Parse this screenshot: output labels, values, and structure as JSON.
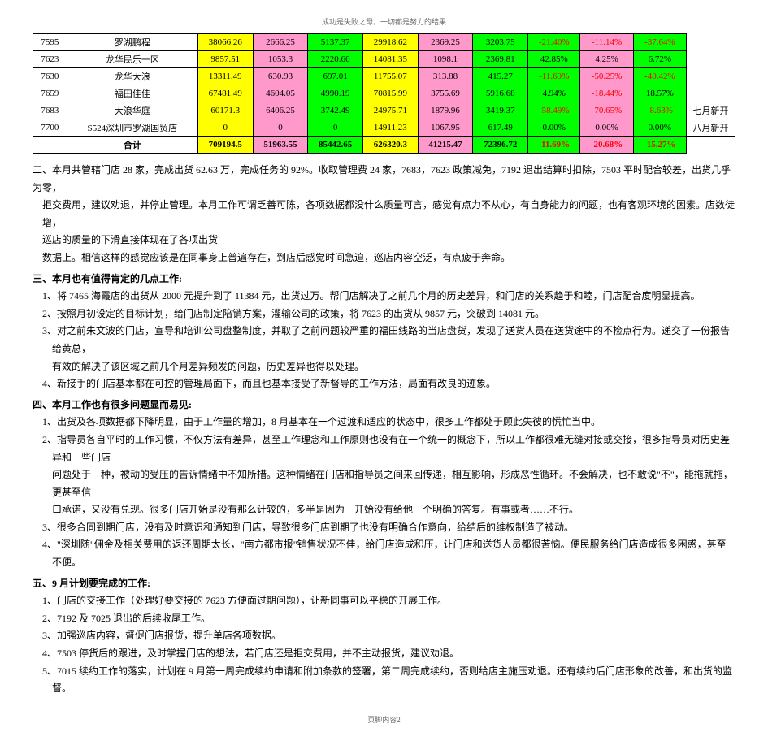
{
  "header_text": "成功是失败之母，一切都是努力的结果",
  "footer_text": "页脚内容2",
  "colors": {
    "yellow": "#ffff00",
    "pink": "#ff99cc",
    "green": "#00ff00",
    "red_text": "#ff0000",
    "white": "#ffffff"
  },
  "table": {
    "rows": [
      {
        "code": "7595",
        "name": "罗湖鹏程",
        "c1": {
          "v": "38066.26",
          "bg": "#ffff00"
        },
        "c2": {
          "v": "2666.25",
          "bg": "#ff99cc"
        },
        "c3": {
          "v": "5137.37",
          "bg": "#00ff00"
        },
        "c4": {
          "v": "29918.62",
          "bg": "#ffff00"
        },
        "c5": {
          "v": "2369.25",
          "bg": "#ff99cc"
        },
        "c6": {
          "v": "3203.75",
          "bg": "#00ff00"
        },
        "c7": {
          "v": "-21.40%",
          "bg": "#00ff00",
          "red": true
        },
        "c8": {
          "v": "-11.14%",
          "bg": "#ff99cc",
          "red": true
        },
        "c9": {
          "v": "-37.64%",
          "bg": "#00ff00",
          "red": true
        },
        "extra": ""
      },
      {
        "code": "7623",
        "name": "龙华民乐一区",
        "c1": {
          "v": "9857.51",
          "bg": "#ffff00"
        },
        "c2": {
          "v": "1053.3",
          "bg": "#ff99cc"
        },
        "c3": {
          "v": "2220.66",
          "bg": "#00ff00"
        },
        "c4": {
          "v": "14081.35",
          "bg": "#ffff00"
        },
        "c5": {
          "v": "1098.1",
          "bg": "#ff99cc"
        },
        "c6": {
          "v": "2369.81",
          "bg": "#00ff00"
        },
        "c7": {
          "v": "42.85%",
          "bg": "#00ff00"
        },
        "c8": {
          "v": "4.25%",
          "bg": "#ff99cc"
        },
        "c9": {
          "v": "6.72%",
          "bg": "#00ff00"
        },
        "extra": ""
      },
      {
        "code": "7630",
        "name": "龙华大浪",
        "c1": {
          "v": "13311.49",
          "bg": "#ffff00"
        },
        "c2": {
          "v": "630.93",
          "bg": "#ff99cc"
        },
        "c3": {
          "v": "697.01",
          "bg": "#00ff00"
        },
        "c4": {
          "v": "11755.07",
          "bg": "#ffff00"
        },
        "c5": {
          "v": "313.88",
          "bg": "#ff99cc"
        },
        "c6": {
          "v": "415.27",
          "bg": "#00ff00"
        },
        "c7": {
          "v": "-11.69%",
          "bg": "#00ff00",
          "red": true
        },
        "c8": {
          "v": "-50.25%",
          "bg": "#ff99cc",
          "red": true
        },
        "c9": {
          "v": "-40.42%",
          "bg": "#00ff00",
          "red": true
        },
        "extra": ""
      },
      {
        "code": "7659",
        "name": "福田佳佳",
        "c1": {
          "v": "67481.49",
          "bg": "#ffff00"
        },
        "c2": {
          "v": "4604.05",
          "bg": "#ff99cc"
        },
        "c3": {
          "v": "4990.19",
          "bg": "#00ff00"
        },
        "c4": {
          "v": "70815.99",
          "bg": "#ffff00"
        },
        "c5": {
          "v": "3755.69",
          "bg": "#ff99cc"
        },
        "c6": {
          "v": "5916.68",
          "bg": "#00ff00"
        },
        "c7": {
          "v": "4.94%",
          "bg": "#00ff00"
        },
        "c8": {
          "v": "-18.44%",
          "bg": "#ff99cc",
          "red": true
        },
        "c9": {
          "v": "18.57%",
          "bg": "#00ff00"
        },
        "extra": ""
      },
      {
        "code": "7683",
        "name": "大浪华庭",
        "c1": {
          "v": "60171.3",
          "bg": "#ffff00"
        },
        "c2": {
          "v": "6406.25",
          "bg": "#ff99cc"
        },
        "c3": {
          "v": "3742.49",
          "bg": "#00ff00"
        },
        "c4": {
          "v": "24975.71",
          "bg": "#ffff00"
        },
        "c5": {
          "v": "1879.96",
          "bg": "#ff99cc"
        },
        "c6": {
          "v": "3419.37",
          "bg": "#00ff00"
        },
        "c7": {
          "v": "-58.49%",
          "bg": "#00ff00",
          "red": true
        },
        "c8": {
          "v": "-70.65%",
          "bg": "#ff99cc",
          "red": true
        },
        "c9": {
          "v": "-8.63%",
          "bg": "#00ff00",
          "red": true
        },
        "extra": "七月新开"
      },
      {
        "code": "7700",
        "name": "S524深圳市罗湖国贸店",
        "c1": {
          "v": "0",
          "bg": "#ffff00"
        },
        "c2": {
          "v": "0",
          "bg": "#ff99cc"
        },
        "c3": {
          "v": "0",
          "bg": "#00ff00"
        },
        "c4": {
          "v": "14911.23",
          "bg": "#ffff00"
        },
        "c5": {
          "v": "1067.95",
          "bg": "#ff99cc"
        },
        "c6": {
          "v": "617.49",
          "bg": "#00ff00"
        },
        "c7": {
          "v": "0.00%",
          "bg": "#00ff00"
        },
        "c8": {
          "v": "0.00%",
          "bg": "#ff99cc"
        },
        "c9": {
          "v": "0.00%",
          "bg": "#00ff00"
        },
        "extra": "八月新开"
      }
    ],
    "total": {
      "label": "合计",
      "c1": {
        "v": "709194.5",
        "bg": "#ffff00"
      },
      "c2": {
        "v": "51963.55",
        "bg": "#ff99cc"
      },
      "c3": {
        "v": "85442.65",
        "bg": "#00ff00"
      },
      "c4": {
        "v": "626320.3",
        "bg": "#ffff00"
      },
      "c5": {
        "v": "41215.47",
        "bg": "#ff99cc"
      },
      "c6": {
        "v": "72396.72",
        "bg": "#00ff00"
      },
      "c7": {
        "v": "-11.69%",
        "bg": "#00ff00",
        "red": true
      },
      "c8": {
        "v": "-20.68%",
        "bg": "#ff99cc",
        "red": true
      },
      "c9": {
        "v": "-15.27%",
        "bg": "#00ff00",
        "red": true
      }
    }
  },
  "sec2": {
    "title": "二、本月共管辖门店 28 家，完成出货 62.63 万，完成任务的 92%。收取管理费 24 家，7683，7623 政策减免，7192 退出结算时扣除，7503 平时配合较差，出货几乎为零，",
    "l2": "拒交费用，建议劝退，并停止管理。本月工作可谓乏善可陈，各项数据都没什么质量可言，感觉有点力不从心，有自身能力的问题，也有客观环境的因素。店数徒增，",
    "l3": "巡店的质量的下滑直接体现在了各项出货",
    "l4": "数据上。相信这样的感觉应该是在同事身上普遍存在，到店后感觉时间急迫，巡店内容空泛，有点疲于奔命。"
  },
  "sec3": {
    "title": "三、本月也有值得肯定的几点工作:",
    "i1": "1、将 7465 海霞店的出货从 2000 元提升到了 11384 元，出货过万。帮门店解决了之前几个月的历史差异，和门店的关系趋于和睦，门店配合度明显提高。",
    "i2": "2、按照月初设定的目标计划，给门店制定陪销方案，灌输公司的政策，将 7623 的出货从 9857 元，突破到 14081 元。",
    "i3_a": "3、对之前朱文波的门店，宣导和培训公司盘整制度，并取了之前问题较严重的福田线路的当店盘货，发现了送货人员在送货途中的不检点行为。递交了一份报告给黄总，",
    "i3_b": "有效的解决了该区域之前几个月差异频发的问题，历史差异也得以处理。",
    "i4": "4、新接手的门店基本都在可控的管理局面下，而且也基本接受了新督导的工作方法，局面有改良的迹象。"
  },
  "sec4": {
    "title": "四、本月工作也有很多问题显而易见:",
    "i1": "1、出货及各项数据都下降明显，由于工作量的增加，8 月基本在一个过渡和适应的状态中，很多工作都处于顾此失彼的慌忙当中。",
    "i2_a": "2、指导员各自平时的工作习惯，不仅方法有差异，甚至工作理念和工作原则也没有在一个统一的概念下，所以工作都很难无缝对接或交接，很多指导员对历史差异和一些门店",
    "i2_b": "问题处于一种，被动的受压的告诉情绪中不知所措。这种情绪在门店和指导员之间来回传递，相互影响，形成恶性循环。不会解决，也不敢说\"不\"，能拖就拖，更甚至信",
    "i2_c": "口承诺，又没有兑现。很多门店开始是没有那么计较的，多半是因为一开始没有给他一个明确的答复。有事或者……不行。",
    "i3": "3、很多合同到期门店，没有及时意识和通知到门店，导致很多门店到期了也没有明确合作意向，给结后的维权制造了被动。",
    "i4": "4、\"深圳随\"佣金及相关费用的返还周期太长，\"南方都市报\"销售状况不佳，给门店造成积压，让门店和送货人员都很苦恼。便民服务给门店造成很多困惑，甚至不便。"
  },
  "sec5": {
    "title": "五、9 月计划要完成的工作:",
    "i1": "1、门店的交接工作（处理好要交接的 7623 方便面过期问题），让新同事可以平稳的开展工作。",
    "i2": "2、7192 及 7025 退出的后续收尾工作。",
    "i3": "3、加强巡店内容，督促门店报货，提升单店各项数据。",
    "i4": "4、7503 停货后的跟进，及时掌握门店的想法，若门店还是拒交费用，并不主动报货，建议劝退。",
    "i5": "5、7015 续约工作的落实，计划在 9 月第一周完成续约申请和附加条款的签署，第二周完成续约，否则给店主施压劝退。还有续约后门店形象的改善，和出货的监督。"
  }
}
